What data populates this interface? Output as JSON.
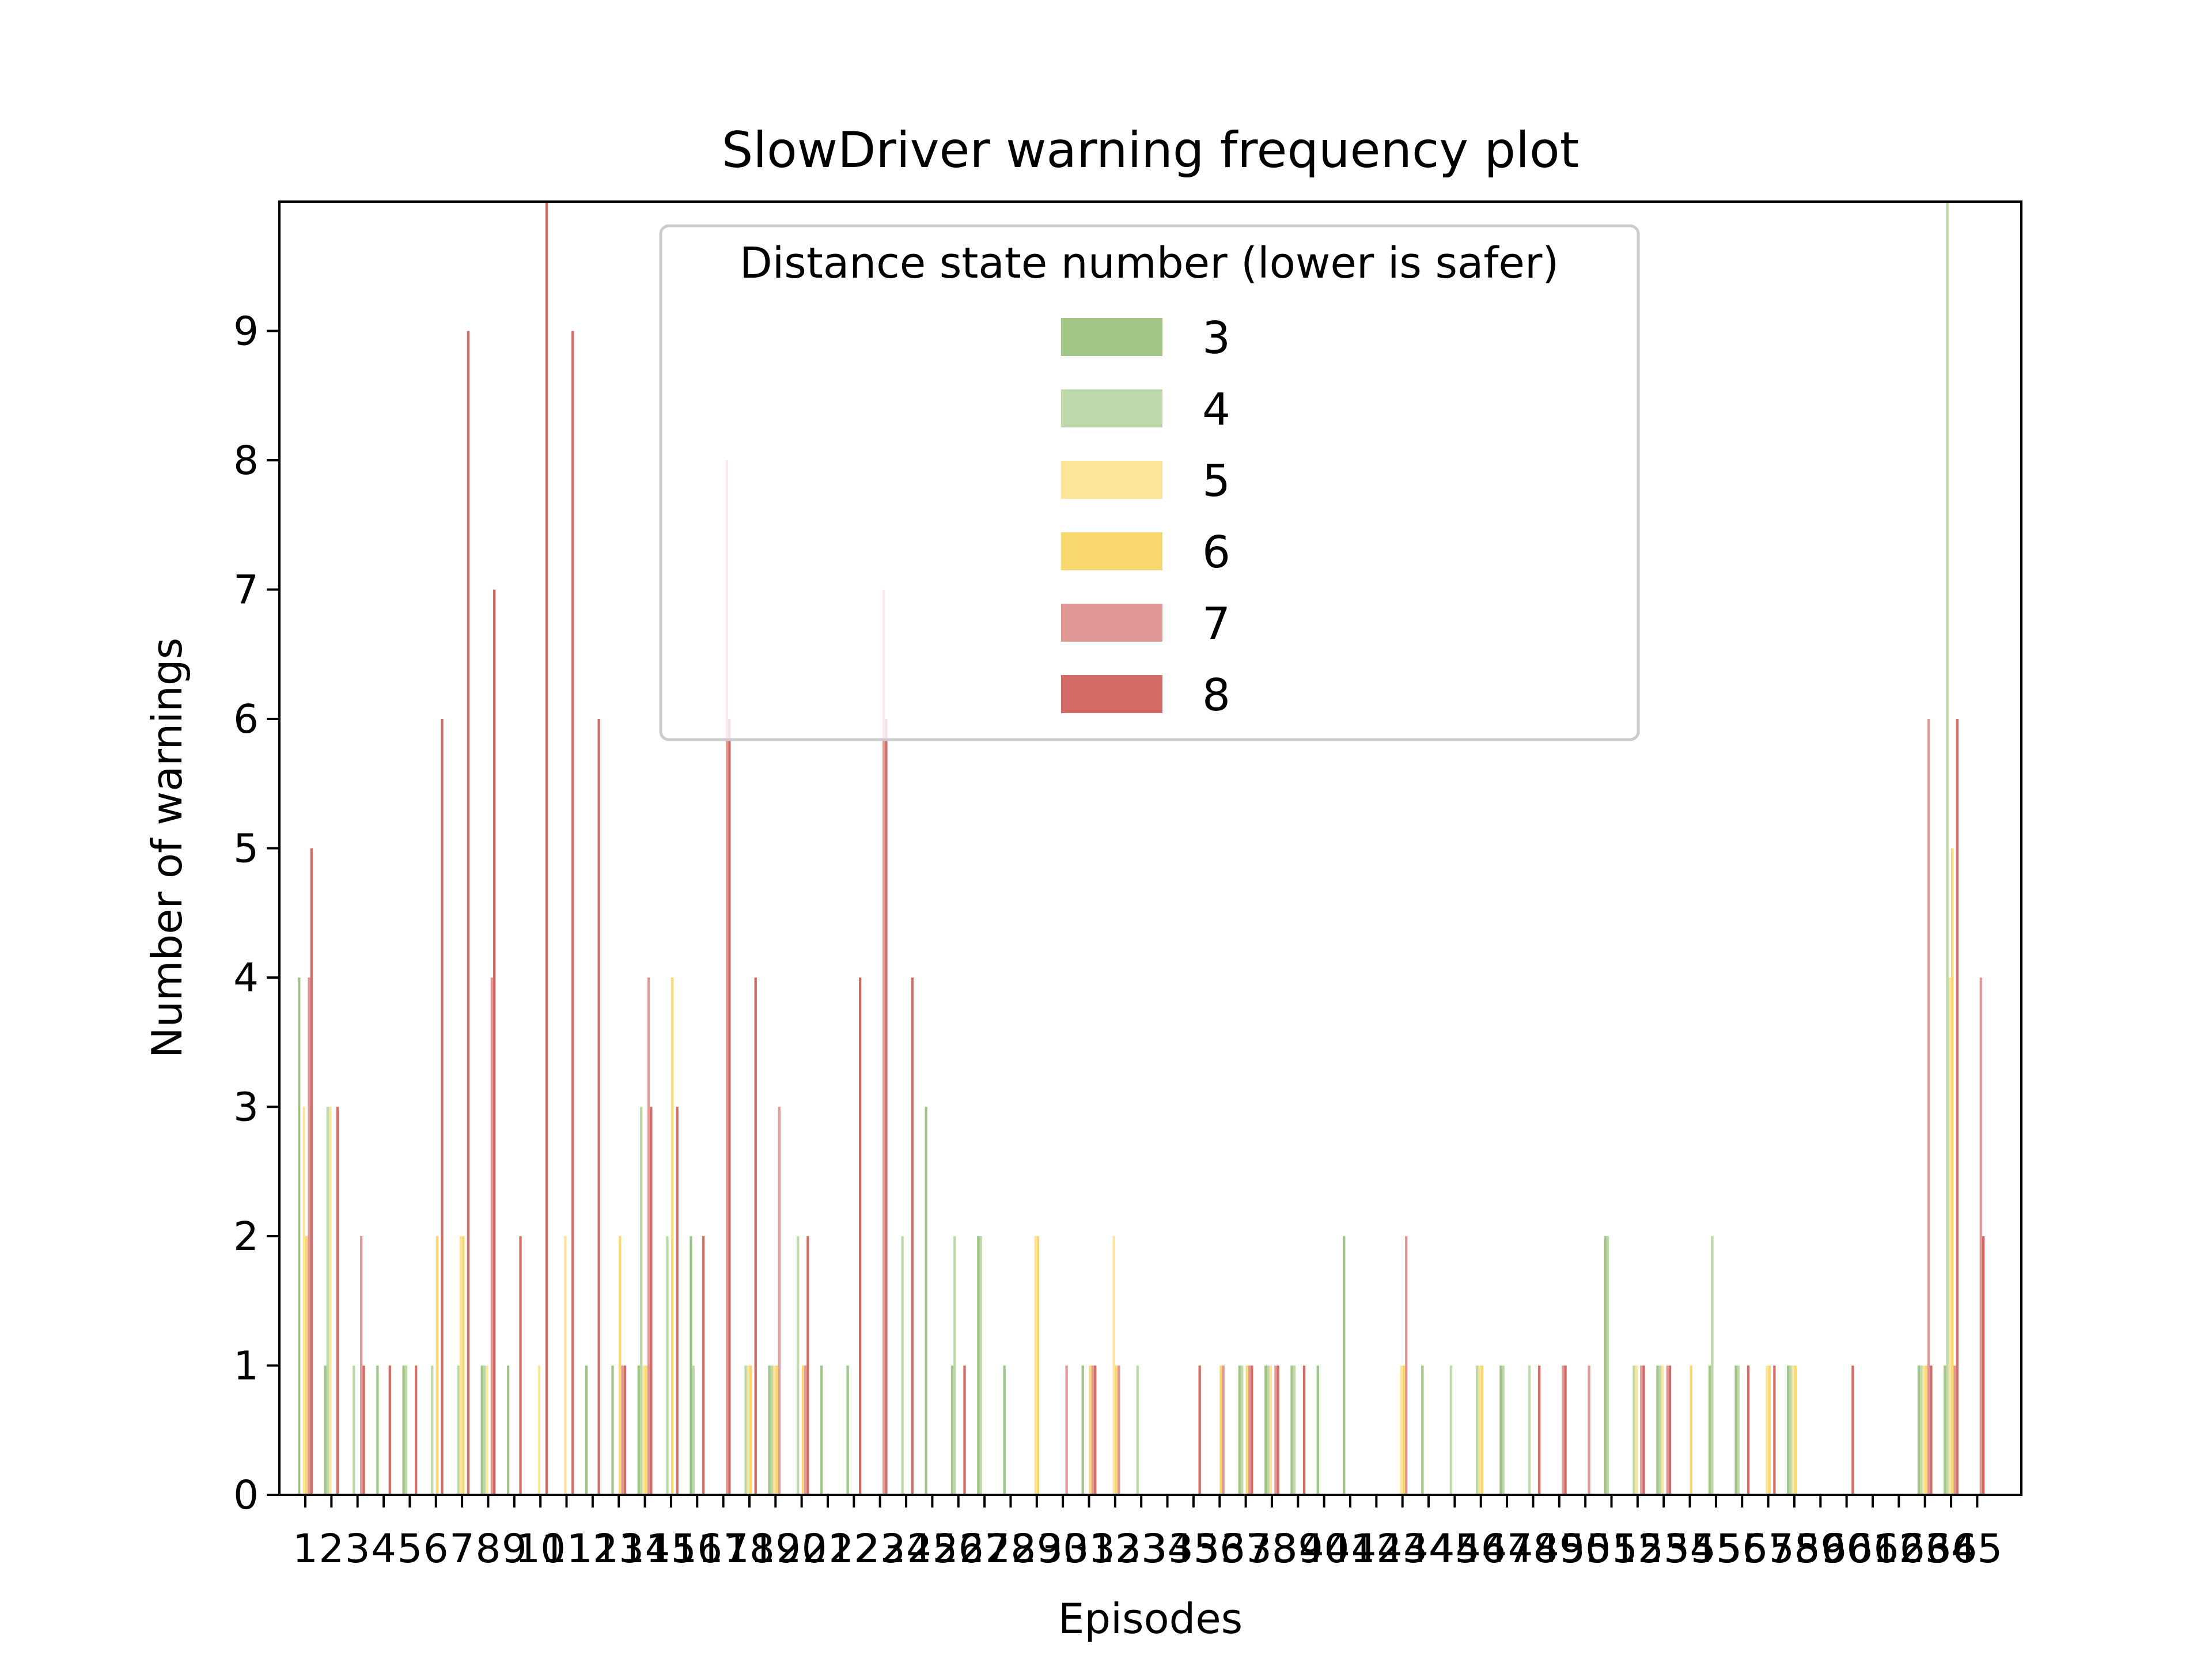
{
  "chart_data": {
    "type": "bar",
    "title": "SlowDriver warning frequency plot",
    "xlabel": "Episodes",
    "ylabel": "Number of warnings",
    "ylim": [
      0,
      10
    ],
    "yticks": [
      0,
      1,
      2,
      3,
      4,
      5,
      6,
      7,
      8,
      9
    ],
    "categories": [
      1,
      2,
      3,
      4,
      5,
      6,
      7,
      8,
      9,
      10,
      11,
      12,
      13,
      14,
      15,
      16,
      17,
      18,
      19,
      20,
      21,
      22,
      23,
      24,
      25,
      26,
      27,
      28,
      29,
      30,
      31,
      32,
      33,
      34,
      35,
      36,
      37,
      38,
      39,
      40,
      41,
      42,
      43,
      44,
      45,
      46,
      47,
      48,
      49,
      50,
      51,
      52,
      53,
      54,
      55,
      56,
      57,
      58,
      59,
      60,
      61,
      62,
      63,
      64,
      65
    ],
    "legend": {
      "title": "Distance state number (lower is safer)",
      "placement": "upper center"
    },
    "grid": false,
    "series": [
      {
        "name": "3",
        "color": "#a0c585",
        "values": [
          4,
          1,
          0,
          1,
          1,
          0,
          0,
          1,
          1,
          0,
          0,
          1,
          1,
          1,
          0,
          2,
          0,
          0,
          1,
          0,
          1,
          1,
          0,
          0,
          3,
          1,
          2,
          1,
          0,
          0,
          1,
          0,
          0,
          0,
          0,
          0,
          1,
          1,
          1,
          1,
          2,
          0,
          0,
          1,
          0,
          0,
          1,
          0,
          0,
          0,
          2,
          0,
          1,
          0,
          1,
          1,
          0,
          1,
          0,
          0,
          0,
          0,
          1,
          1,
          0
        ]
      },
      {
        "name": "4",
        "color": "#bdd8a9",
        "values": [
          0,
          3,
          1,
          0,
          1,
          1,
          1,
          1,
          0,
          0,
          0,
          0,
          0,
          3,
          2,
          1,
          0,
          1,
          1,
          2,
          0,
          0,
          0,
          2,
          0,
          2,
          2,
          0,
          0,
          0,
          0,
          0,
          1,
          0,
          0,
          0,
          1,
          1,
          1,
          0,
          0,
          0,
          0,
          0,
          1,
          1,
          1,
          1,
          0,
          0,
          2,
          1,
          1,
          0,
          2,
          1,
          0,
          1,
          0,
          0,
          0,
          0,
          1,
          10,
          0
        ]
      },
      {
        "name": "5",
        "color": "#fce49a",
        "values": [
          3,
          3,
          0,
          0,
          0,
          0,
          2,
          1,
          0,
          1,
          2,
          0,
          0,
          1,
          0,
          0,
          0,
          1,
          1,
          0,
          0,
          0,
          0,
          0,
          0,
          0,
          0,
          0,
          2,
          0,
          0,
          2,
          0,
          0,
          0,
          0,
          0,
          1,
          0,
          0,
          0,
          0,
          1,
          0,
          0,
          1,
          0,
          0,
          0,
          0,
          0,
          1,
          1,
          0,
          0,
          0,
          1,
          1,
          0,
          0,
          0,
          0,
          1,
          4,
          0
        ]
      },
      {
        "name": "6",
        "color": "#f9d872",
        "values": [
          2,
          0,
          0,
          0,
          0,
          2,
          2,
          0,
          0,
          0,
          0,
          0,
          2,
          1,
          4,
          0,
          0,
          1,
          1,
          1,
          0,
          0,
          0,
          0,
          0,
          0,
          0,
          0,
          2,
          0,
          1,
          1,
          0,
          0,
          0,
          1,
          1,
          0,
          0,
          0,
          0,
          0,
          1,
          0,
          0,
          1,
          0,
          0,
          0,
          0,
          0,
          0,
          0,
          1,
          0,
          0,
          1,
          1,
          0,
          0,
          0,
          0,
          1,
          5,
          0
        ]
      },
      {
        "name": "7",
        "color": "#e09994",
        "values": [
          4,
          0,
          2,
          0,
          0,
          0,
          0,
          4,
          0,
          0,
          0,
          0,
          1,
          4,
          0,
          0,
          8,
          0,
          3,
          1,
          0,
          0,
          7,
          0,
          0,
          0,
          0,
          0,
          0,
          1,
          1,
          1,
          0,
          0,
          0,
          1,
          1,
          1,
          0,
          0,
          0,
          0,
          2,
          0,
          0,
          0,
          0,
          0,
          1,
          1,
          0,
          1,
          1,
          0,
          0,
          0,
          0,
          0,
          0,
          0,
          0,
          0,
          6,
          1,
          4
        ]
      },
      {
        "name": "8",
        "color": "#d36c66",
        "values": [
          5,
          3,
          1,
          1,
          1,
          6,
          9,
          7,
          2,
          10,
          9,
          6,
          1,
          3,
          3,
          2,
          6,
          4,
          0,
          2,
          0,
          4,
          6,
          4,
          0,
          1,
          0,
          0,
          0,
          0,
          1,
          0,
          0,
          0,
          1,
          0,
          1,
          1,
          1,
          0,
          0,
          0,
          0,
          0,
          0,
          0,
          0,
          1,
          1,
          0,
          0,
          1,
          1,
          0,
          0,
          1,
          1,
          0,
          0,
          1,
          0,
          0,
          1,
          6,
          2
        ]
      }
    ]
  }
}
